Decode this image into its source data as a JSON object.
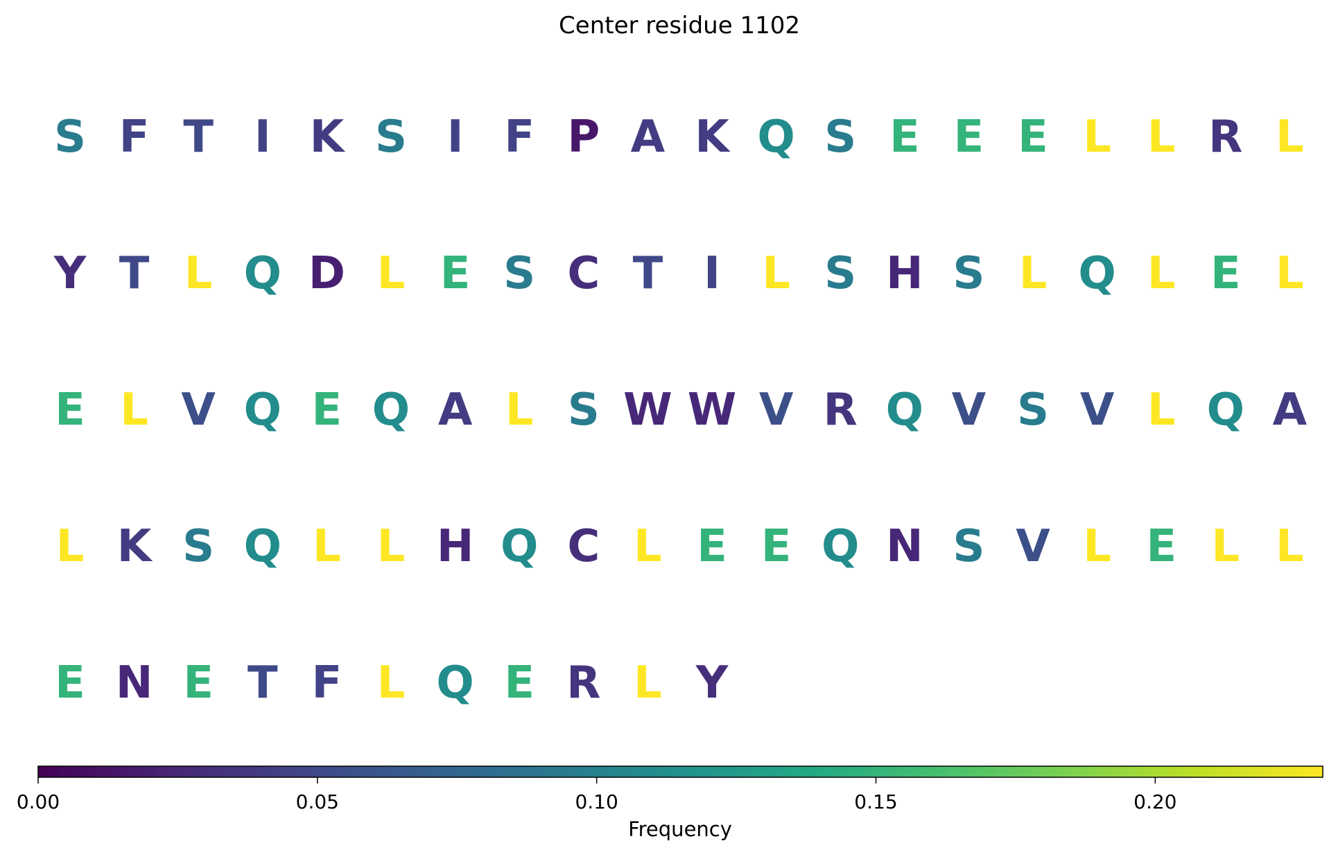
{
  "chart_data": {
    "type": "heatmap",
    "title": "Center residue 1102",
    "layout": "sequence grid, 20 residues per row",
    "residues_per_row": 20,
    "sequence": [
      {
        "aa": "S",
        "freq": 0.095
      },
      {
        "aa": "F",
        "freq": 0.045
      },
      {
        "aa": "T",
        "freq": 0.05
      },
      {
        "aa": "I",
        "freq": 0.045
      },
      {
        "aa": "K",
        "freq": 0.04
      },
      {
        "aa": "S",
        "freq": 0.095
      },
      {
        "aa": "I",
        "freq": 0.045
      },
      {
        "aa": "F",
        "freq": 0.045
      },
      {
        "aa": "P",
        "freq": 0.015
      },
      {
        "aa": "A",
        "freq": 0.04
      },
      {
        "aa": "K",
        "freq": 0.04
      },
      {
        "aa": "Q",
        "freq": 0.11
      },
      {
        "aa": "S",
        "freq": 0.095
      },
      {
        "aa": "E",
        "freq": 0.15
      },
      {
        "aa": "E",
        "freq": 0.15
      },
      {
        "aa": "E",
        "freq": 0.15
      },
      {
        "aa": "L",
        "freq": 0.23
      },
      {
        "aa": "L",
        "freq": 0.23
      },
      {
        "aa": "R",
        "freq": 0.035
      },
      {
        "aa": "L",
        "freq": 0.23
      },
      {
        "aa": "Y",
        "freq": 0.03
      },
      {
        "aa": "T",
        "freq": 0.05
      },
      {
        "aa": "L",
        "freq": 0.23
      },
      {
        "aa": "Q",
        "freq": 0.11
      },
      {
        "aa": "D",
        "freq": 0.02
      },
      {
        "aa": "L",
        "freq": 0.23
      },
      {
        "aa": "E",
        "freq": 0.15
      },
      {
        "aa": "S",
        "freq": 0.095
      },
      {
        "aa": "C",
        "freq": 0.03
      },
      {
        "aa": "T",
        "freq": 0.05
      },
      {
        "aa": "I",
        "freq": 0.045
      },
      {
        "aa": "L",
        "freq": 0.23
      },
      {
        "aa": "S",
        "freq": 0.095
      },
      {
        "aa": "H",
        "freq": 0.025
      },
      {
        "aa": "S",
        "freq": 0.095
      },
      {
        "aa": "L",
        "freq": 0.23
      },
      {
        "aa": "Q",
        "freq": 0.11
      },
      {
        "aa": "L",
        "freq": 0.23
      },
      {
        "aa": "E",
        "freq": 0.15
      },
      {
        "aa": "L",
        "freq": 0.23
      },
      {
        "aa": "E",
        "freq": 0.15
      },
      {
        "aa": "L",
        "freq": 0.23
      },
      {
        "aa": "V",
        "freq": 0.055
      },
      {
        "aa": "Q",
        "freq": 0.11
      },
      {
        "aa": "E",
        "freq": 0.15
      },
      {
        "aa": "Q",
        "freq": 0.11
      },
      {
        "aa": "A",
        "freq": 0.04
      },
      {
        "aa": "L",
        "freq": 0.23
      },
      {
        "aa": "S",
        "freq": 0.095
      },
      {
        "aa": "W",
        "freq": 0.025
      },
      {
        "aa": "W",
        "freq": 0.025
      },
      {
        "aa": "V",
        "freq": 0.055
      },
      {
        "aa": "R",
        "freq": 0.035
      },
      {
        "aa": "Q",
        "freq": 0.11
      },
      {
        "aa": "V",
        "freq": 0.055
      },
      {
        "aa": "S",
        "freq": 0.095
      },
      {
        "aa": "V",
        "freq": 0.055
      },
      {
        "aa": "L",
        "freq": 0.23
      },
      {
        "aa": "Q",
        "freq": 0.11
      },
      {
        "aa": "A",
        "freq": 0.04
      },
      {
        "aa": "L",
        "freq": 0.23
      },
      {
        "aa": "K",
        "freq": 0.04
      },
      {
        "aa": "S",
        "freq": 0.095
      },
      {
        "aa": "Q",
        "freq": 0.11
      },
      {
        "aa": "L",
        "freq": 0.23
      },
      {
        "aa": "L",
        "freq": 0.23
      },
      {
        "aa": "H",
        "freq": 0.025
      },
      {
        "aa": "Q",
        "freq": 0.11
      },
      {
        "aa": "C",
        "freq": 0.03
      },
      {
        "aa": "L",
        "freq": 0.23
      },
      {
        "aa": "E",
        "freq": 0.15
      },
      {
        "aa": "E",
        "freq": 0.15
      },
      {
        "aa": "Q",
        "freq": 0.11
      },
      {
        "aa": "N",
        "freq": 0.025
      },
      {
        "aa": "S",
        "freq": 0.095
      },
      {
        "aa": "V",
        "freq": 0.055
      },
      {
        "aa": "L",
        "freq": 0.23
      },
      {
        "aa": "E",
        "freq": 0.15
      },
      {
        "aa": "L",
        "freq": 0.23
      },
      {
        "aa": "L",
        "freq": 0.23
      },
      {
        "aa": "E",
        "freq": 0.15
      },
      {
        "aa": "N",
        "freq": 0.025
      },
      {
        "aa": "E",
        "freq": 0.15
      },
      {
        "aa": "T",
        "freq": 0.05
      },
      {
        "aa": "F",
        "freq": 0.045
      },
      {
        "aa": "L",
        "freq": 0.23
      },
      {
        "aa": "Q",
        "freq": 0.11
      },
      {
        "aa": "E",
        "freq": 0.15
      },
      {
        "aa": "R",
        "freq": 0.035
      },
      {
        "aa": "L",
        "freq": 0.23
      },
      {
        "aa": "Y",
        "freq": 0.03
      }
    ],
    "colorbar": {
      "colormap": "viridis",
      "orientation": "horizontal",
      "placement": "bottom",
      "range": [
        0.0,
        0.23
      ],
      "ticks": [
        0.0,
        0.05,
        0.1,
        0.15,
        0.2
      ],
      "tick_labels": [
        "0.00",
        "0.05",
        "0.10",
        "0.15",
        "0.20"
      ],
      "label": "Frequency"
    },
    "grid": false,
    "axes_visible": false
  }
}
